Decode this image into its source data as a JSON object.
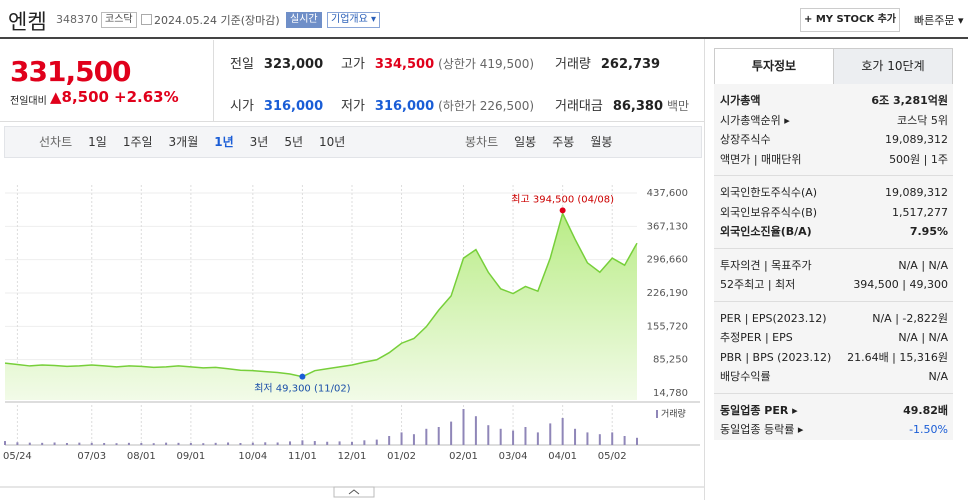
{
  "header": {
    "name": "엔켐",
    "code": "348370",
    "market": "코스닥",
    "date": "2024.05.24 기준(장마감)",
    "realtime": "실시간",
    "company_info": "기업개요",
    "mystock": "+ MY STOCK 추가",
    "quick_order": "빠른주문"
  },
  "price": {
    "current": "331,500",
    "change_label": "전일대비",
    "change": "▲8,500",
    "change_pct": "+2.63%",
    "color": "#e0001b"
  },
  "summary": [
    {
      "label": "전일",
      "value": "323,000",
      "color": "#222"
    },
    {
      "label": "고가",
      "value": "334,500",
      "note": "(상한가 419,500)",
      "color": "#e0001b"
    },
    {
      "label": "거래량",
      "value": "262,739",
      "color": "#222"
    },
    {
      "label": "시가",
      "value": "316,000",
      "color": "#1a5dd6"
    },
    {
      "label": "저가",
      "value": "316,000",
      "note": "(하한가 226,500)",
      "color": "#1a5dd6"
    },
    {
      "label": "거래대금",
      "value": "86,380",
      "note": "백만",
      "color": "#222"
    }
  ],
  "chart_tabs": {
    "line": "선차트",
    "periods": [
      "1일",
      "1주일",
      "3개월",
      "1년",
      "3년",
      "5년",
      "10년"
    ],
    "candle": "봉차트",
    "candle_periods": [
      "일봉",
      "주봉",
      "월봉"
    ]
  },
  "chart_data": {
    "type": "line",
    "color": "#77cf3a",
    "categories": [
      null,
      "05/24",
      null,
      null,
      null,
      null,
      null,
      "07/03",
      null,
      null,
      null,
      "08/01",
      null,
      null,
      null,
      "09/01",
      null,
      null,
      null,
      null,
      "10/04",
      null,
      null,
      null,
      "11/01",
      null,
      null,
      null,
      "12/01",
      null,
      null,
      null,
      "01/02",
      null,
      null,
      null,
      null,
      "02/01",
      null,
      null,
      null,
      "03/04",
      null,
      null,
      null,
      "04/01",
      null,
      null,
      null,
      "05/02",
      null,
      null
    ],
    "values": [
      78000,
      75000,
      72000,
      74000,
      73000,
      71000,
      72000,
      74000,
      72000,
      70000,
      72000,
      71000,
      69000,
      70000,
      72000,
      70000,
      68000,
      69000,
      66000,
      63000,
      62000,
      60000,
      58000,
      55000,
      49300,
      62000,
      66000,
      70000,
      74000,
      80000,
      85000,
      100000,
      120000,
      130000,
      155000,
      190000,
      220000,
      300000,
      318000,
      270000,
      235000,
      225000,
      240000,
      230000,
      300000,
      394500,
      340000,
      290000,
      270000,
      300000,
      285000,
      331500
    ],
    "ylim": [
      14780,
      437600
    ],
    "yticks": [
      {
        "value": 437600,
        "label": "437,600"
      },
      {
        "value": 367130,
        "label": "367,130"
      },
      {
        "value": 296660,
        "label": "296,660"
      },
      {
        "value": 226190,
        "label": "226,190"
      },
      {
        "value": 155720,
        "label": "155,720"
      },
      {
        "value": 85250,
        "label": "85,250"
      },
      {
        "value": 14780,
        "label": "14,780"
      }
    ],
    "max_label": "최고 394,500 (04/08)",
    "min_label": "최저 49,300 (11/02)",
    "volume": {
      "name": "거래량",
      "color": "#8f86b8",
      "values": [
        220000,
        150000,
        130000,
        120000,
        140000,
        110000,
        130000,
        120000,
        110000,
        100000,
        120000,
        110000,
        100000,
        130000,
        120000,
        110000,
        100000,
        120000,
        140000,
        110000,
        130000,
        150000,
        140000,
        200000,
        260000,
        220000,
        180000,
        200000,
        170000,
        260000,
        300000,
        500000,
        700000,
        600000,
        900000,
        1000000,
        1300000,
        2000000,
        1600000,
        1100000,
        900000,
        800000,
        1000000,
        700000,
        1200000,
        1500000,
        900000,
        700000,
        600000,
        700000,
        500000,
        400000
      ]
    }
  },
  "info_tabs": [
    "투자정보",
    "호가 10단계"
  ],
  "info_sections": [
    [
      {
        "label": "시가총액",
        "value": "6조 3,281억원",
        "bold": true
      },
      {
        "label": "시가총액순위 ▸",
        "value": "코스닥 5위"
      },
      {
        "label": "상장주식수",
        "value": "19,089,312"
      },
      {
        "label": "액면가 | 매매단위",
        "value": "500원 | 1주"
      }
    ],
    [
      {
        "label": "외국인한도주식수(A)",
        "value": "19,089,312"
      },
      {
        "label": "외국인보유주식수(B)",
        "value": "1,517,277"
      },
      {
        "label": "외국인소진율(B/A)",
        "value": "7.95%",
        "bold": true
      }
    ],
    [
      {
        "label": "투자의견 | 목표주가",
        "value": "N/A | N/A"
      },
      {
        "label": "52주최고 | 최저",
        "value": "394,500 | 49,300"
      }
    ],
    [
      {
        "label": "PER | EPS(2023.12)",
        "value": "N/A | -2,822원"
      },
      {
        "label": "추정PER | EPS",
        "value": "N/A | N/A"
      },
      {
        "label": "PBR | BPS (2023.12)",
        "value": "21.64배 | 15,316원"
      },
      {
        "label": "배당수익률",
        "value": "N/A"
      }
    ],
    [
      {
        "label": "동일업종 PER ▸",
        "value": "49.82배",
        "bold": true
      },
      {
        "label": "동일업종 등락률 ▸",
        "value": "-1.50%",
        "color": "#1a5dd6"
      }
    ]
  ]
}
